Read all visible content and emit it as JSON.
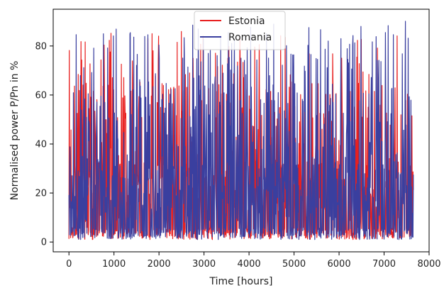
{
  "chart_data": {
    "type": "line",
    "title": "",
    "xlabel": "Time [hours]",
    "ylabel": "Normalised power P/Pn in %",
    "xlim": [
      -350,
      8000
    ],
    "ylim": [
      -4,
      95
    ],
    "xticks": [
      0,
      1000,
      2000,
      3000,
      4000,
      5000,
      6000,
      7000,
      8000
    ],
    "yticks": [
      0,
      20,
      40,
      60,
      80
    ],
    "grid": false,
    "legend_position": "top-center",
    "series": [
      {
        "name": "Estonia",
        "color": "#e82020",
        "x_start": 0,
        "x_end": 7650,
        "min": 0,
        "max": 86
      },
      {
        "name": "Romania",
        "color": "#3a3f9f",
        "x_start": 0,
        "x_end": 7650,
        "min": 0,
        "max": 91
      }
    ]
  }
}
